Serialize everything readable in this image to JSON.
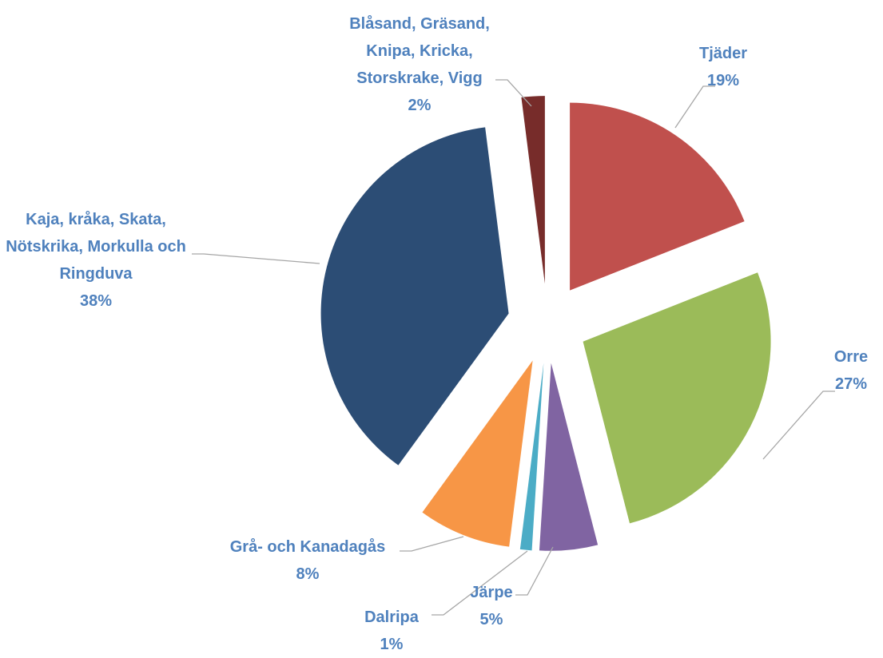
{
  "chart_data": {
    "type": "pie",
    "categories": [
      "Tjäder",
      "Orre",
      "Järpe",
      "Dalripa",
      "Grå- och Kanadagås",
      "Kaja, kråka, Skata, Nötskrika, Morkulla och Ringduva",
      "Blåsand, Gräsand, Knipa, Kricka, Storskrake, Vigg"
    ],
    "values": [
      19,
      27,
      5,
      1,
      8,
      38,
      2
    ],
    "value_labels": [
      "19%",
      "27%",
      "5%",
      "1%",
      "8%",
      "38%",
      "2%"
    ],
    "colors": [
      "#c0504d",
      "#9bbb59",
      "#8064a2",
      "#4bacc6",
      "#f79646",
      "#2c4d75",
      "#772c2a"
    ]
  }
}
